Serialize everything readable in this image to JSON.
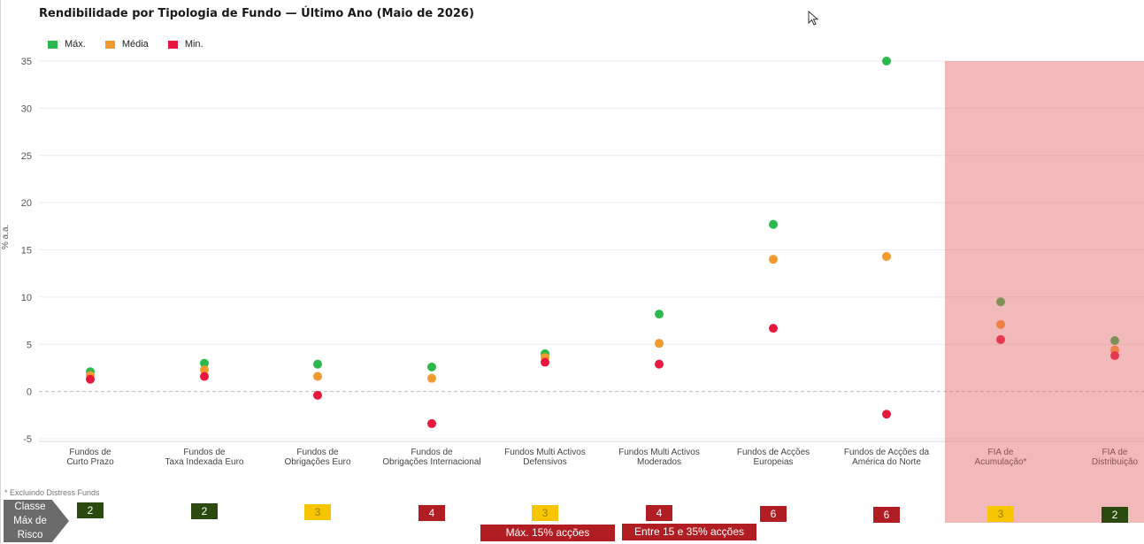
{
  "title": "Rendibilidade por Tipologia de Fundo — Último Ano (Maio de 2026)",
  "chart_data": {
    "type": "scatter",
    "title": "Rendibilidade por Tipologia de Fundo — Último Ano (Maio de 2026)",
    "ylabel": "% a.a.",
    "xlabel": "",
    "ylim": [
      -5,
      35
    ],
    "yticks": [
      -5,
      0,
      5,
      10,
      15,
      20,
      25,
      30,
      35
    ],
    "grid": "horizontal",
    "legend_position": "top-left",
    "categories": [
      [
        "Fundos de",
        "Curto Prazo"
      ],
      [
        "Fundos de",
        "Taxa Indexada Euro"
      ],
      [
        "Fundos de",
        "Obrigações Euro"
      ],
      [
        "Fundos de",
        "Obrigações Internacional"
      ],
      [
        "Fundos Multi Activos",
        "Defensivos"
      ],
      [
        "Fundos Multi Activos",
        "Moderados"
      ],
      [
        "Fundos de Acções",
        "Europeias"
      ],
      [
        "Fundos de Acções da",
        "América do Norte"
      ],
      [
        "FIA de",
        "Acumulação*"
      ],
      [
        "FIA de",
        "Distribuição"
      ]
    ],
    "series": [
      {
        "name": "Máx.",
        "color": "#2db84d",
        "values": [
          2.1,
          3.0,
          2.9,
          2.6,
          4.0,
          8.2,
          17.7,
          35.0,
          9.5,
          5.4
        ]
      },
      {
        "name": "Média",
        "color": "#f39a2e",
        "values": [
          1.7,
          2.3,
          1.6,
          1.4,
          3.6,
          5.1,
          14.0,
          14.3,
          7.1,
          4.4
        ]
      },
      {
        "name": "Min.",
        "color": "#e8173e",
        "values": [
          1.3,
          1.6,
          -0.4,
          -3.4,
          3.1,
          2.9,
          6.7,
          -2.4,
          5.5,
          3.8
        ]
      }
    ],
    "highlight_region": {
      "categories": [
        "FIA de Acumulação*",
        "FIA de Distribuição"
      ],
      "color": "#e26466"
    }
  },
  "footnote": "* Excluindo Distress Funds",
  "risk_row": {
    "label": [
      "Classe",
      "Máx de",
      "Risco"
    ],
    "values": [
      "2",
      "2",
      "3",
      "4",
      "3",
      "4",
      "6",
      "6",
      "3",
      "2"
    ],
    "colors": [
      "#2a4a10",
      "#2a4a10",
      "#f7c600",
      "#b01e24",
      "#f7c600",
      "#b01e24",
      "#b01e24",
      "#b01e24",
      "#f7c600",
      "#2a4a10"
    ],
    "text_colors": [
      "#ffffff",
      "#ffffff",
      "#9a7d00",
      "#ffffff",
      "#9a7d00",
      "#ffffff",
      "#ffffff",
      "#ffffff",
      "#9a7d00",
      "#ffffff"
    ]
  },
  "notes": {
    "defensivos": "Máx. 15% acções",
    "moderados": "Entre 15 e 35% acções"
  },
  "cursor_icon": "mouse-pointer-icon"
}
